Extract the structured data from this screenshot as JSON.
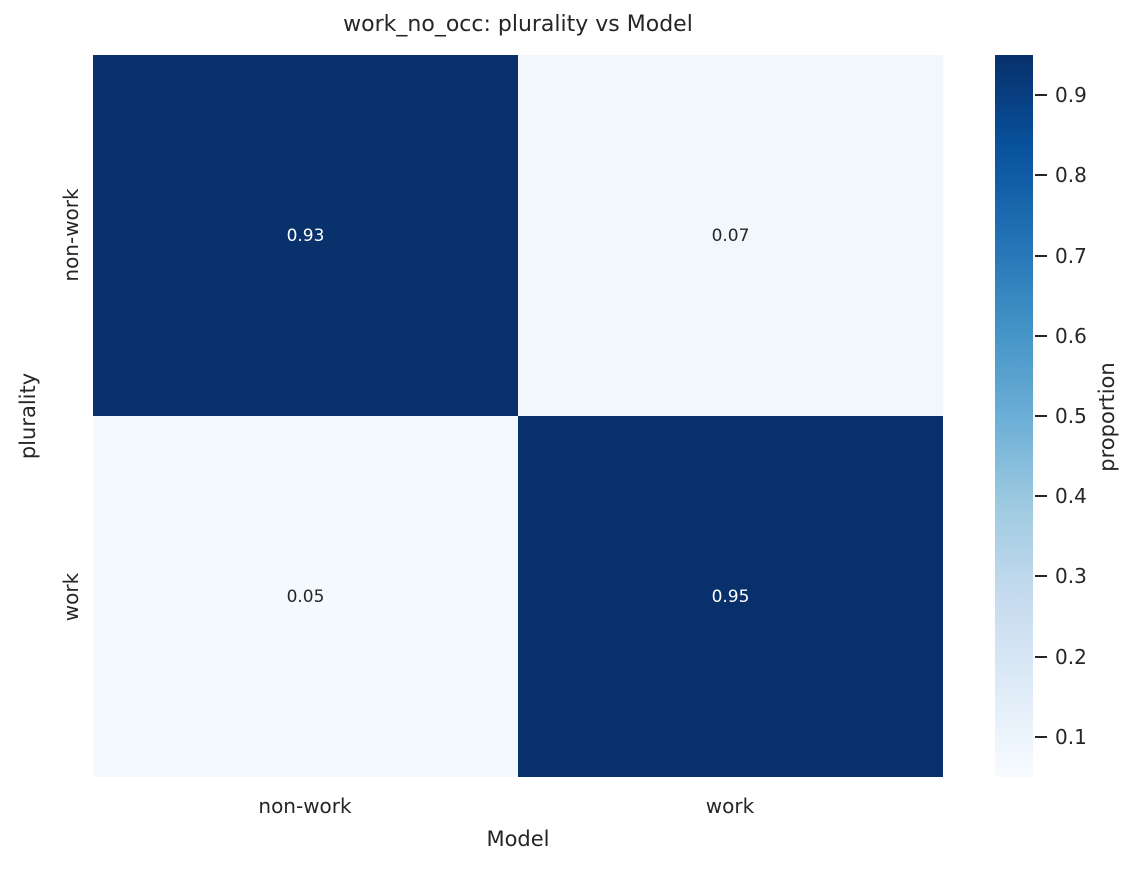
{
  "figure": {
    "background": "#ffffff",
    "text_color": "#262626"
  },
  "chart_data": {
    "type": "heatmap",
    "title": "work_no_occ: plurality vs Model",
    "xlabel": "Model",
    "ylabel": "plurality",
    "x_categories": [
      "non-work",
      "work"
    ],
    "y_categories": [
      "non-work",
      "work"
    ],
    "series": [
      {
        "name": "non-work",
        "values": [
          0.93,
          0.07
        ]
      },
      {
        "name": "work",
        "values": [
          0.05,
          0.95
        ]
      }
    ],
    "cells": [
      [
        "0.93",
        "0.07"
      ],
      [
        "0.05",
        "0.95"
      ]
    ],
    "cell_colors": [
      [
        "#09316c",
        "#f1f7fb"
      ],
      [
        "#f4f9fd",
        "#08306b"
      ]
    ],
    "cell_text_colors": [
      [
        "#ffffff",
        "#262626"
      ],
      [
        "#262626",
        "#ffffff"
      ]
    ],
    "colorbar": {
      "label": "proportion",
      "tick_labels": [
        "0.1",
        "0.2",
        "0.3",
        "0.4",
        "0.5",
        "0.6",
        "0.7",
        "0.8",
        "0.9"
      ],
      "vmin": 0.05,
      "vmax": 0.95,
      "colormap": "Blues",
      "gradient_stops": [
        "#f7fbff",
        "#deebf7",
        "#c6dbef",
        "#9ecae1",
        "#6baed6",
        "#4292c6",
        "#2171b5",
        "#08519c",
        "#08306b"
      ]
    },
    "grid": false,
    "legend_position": "none"
  }
}
